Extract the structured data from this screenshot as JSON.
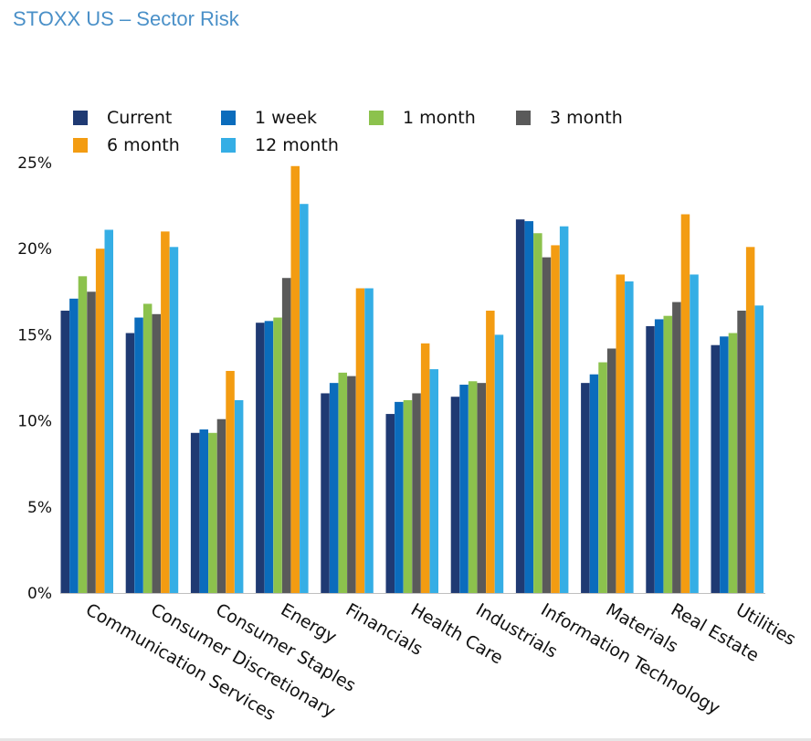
{
  "chart_data": {
    "type": "bar",
    "title": "STOXX US – Sector Risk",
    "xlabel": "",
    "ylabel": "",
    "ylim": [
      0,
      25
    ],
    "yticks": [
      "0%",
      "5%",
      "10%",
      "15%",
      "20%",
      "25%"
    ],
    "ytick_values": [
      0,
      5,
      10,
      15,
      20,
      25
    ],
    "grid": false,
    "legend_position": "top-left",
    "categories": [
      "Communication Services",
      "Consumer Discretionary",
      "Consumer Staples",
      "Energy",
      "Financials",
      "Health Care",
      "Industrials",
      "Information Technology",
      "Materials",
      "Real Estate",
      "Utilities"
    ],
    "series": [
      {
        "name": "Current",
        "color": "#1f3a73",
        "values": [
          16.4,
          15.1,
          9.3,
          15.7,
          11.6,
          10.4,
          11.4,
          21.7,
          12.2,
          15.5,
          14.4
        ]
      },
      {
        "name": "1 week",
        "color": "#0b6cbc",
        "values": [
          17.1,
          16.0,
          9.5,
          15.8,
          12.2,
          11.1,
          12.1,
          21.6,
          12.7,
          15.9,
          14.9
        ]
      },
      {
        "name": "1 month",
        "color": "#8cc24d",
        "values": [
          18.4,
          16.8,
          9.3,
          16.0,
          12.8,
          11.2,
          12.3,
          20.9,
          13.4,
          16.1,
          15.1
        ]
      },
      {
        "name": "3 month",
        "color": "#5a5a5a",
        "values": [
          17.5,
          16.2,
          10.1,
          18.3,
          12.6,
          11.6,
          12.2,
          19.5,
          14.2,
          16.9,
          16.4
        ]
      },
      {
        "name": "6 month",
        "color": "#f39c12",
        "values": [
          20.0,
          21.0,
          12.9,
          24.8,
          17.7,
          14.5,
          16.4,
          20.2,
          18.5,
          22.0,
          20.1
        ]
      },
      {
        "name": "12 month",
        "color": "#35aee5",
        "values": [
          21.1,
          20.1,
          11.2,
          22.6,
          17.7,
          13.0,
          15.0,
          21.3,
          18.1,
          18.5,
          16.7
        ]
      }
    ]
  }
}
